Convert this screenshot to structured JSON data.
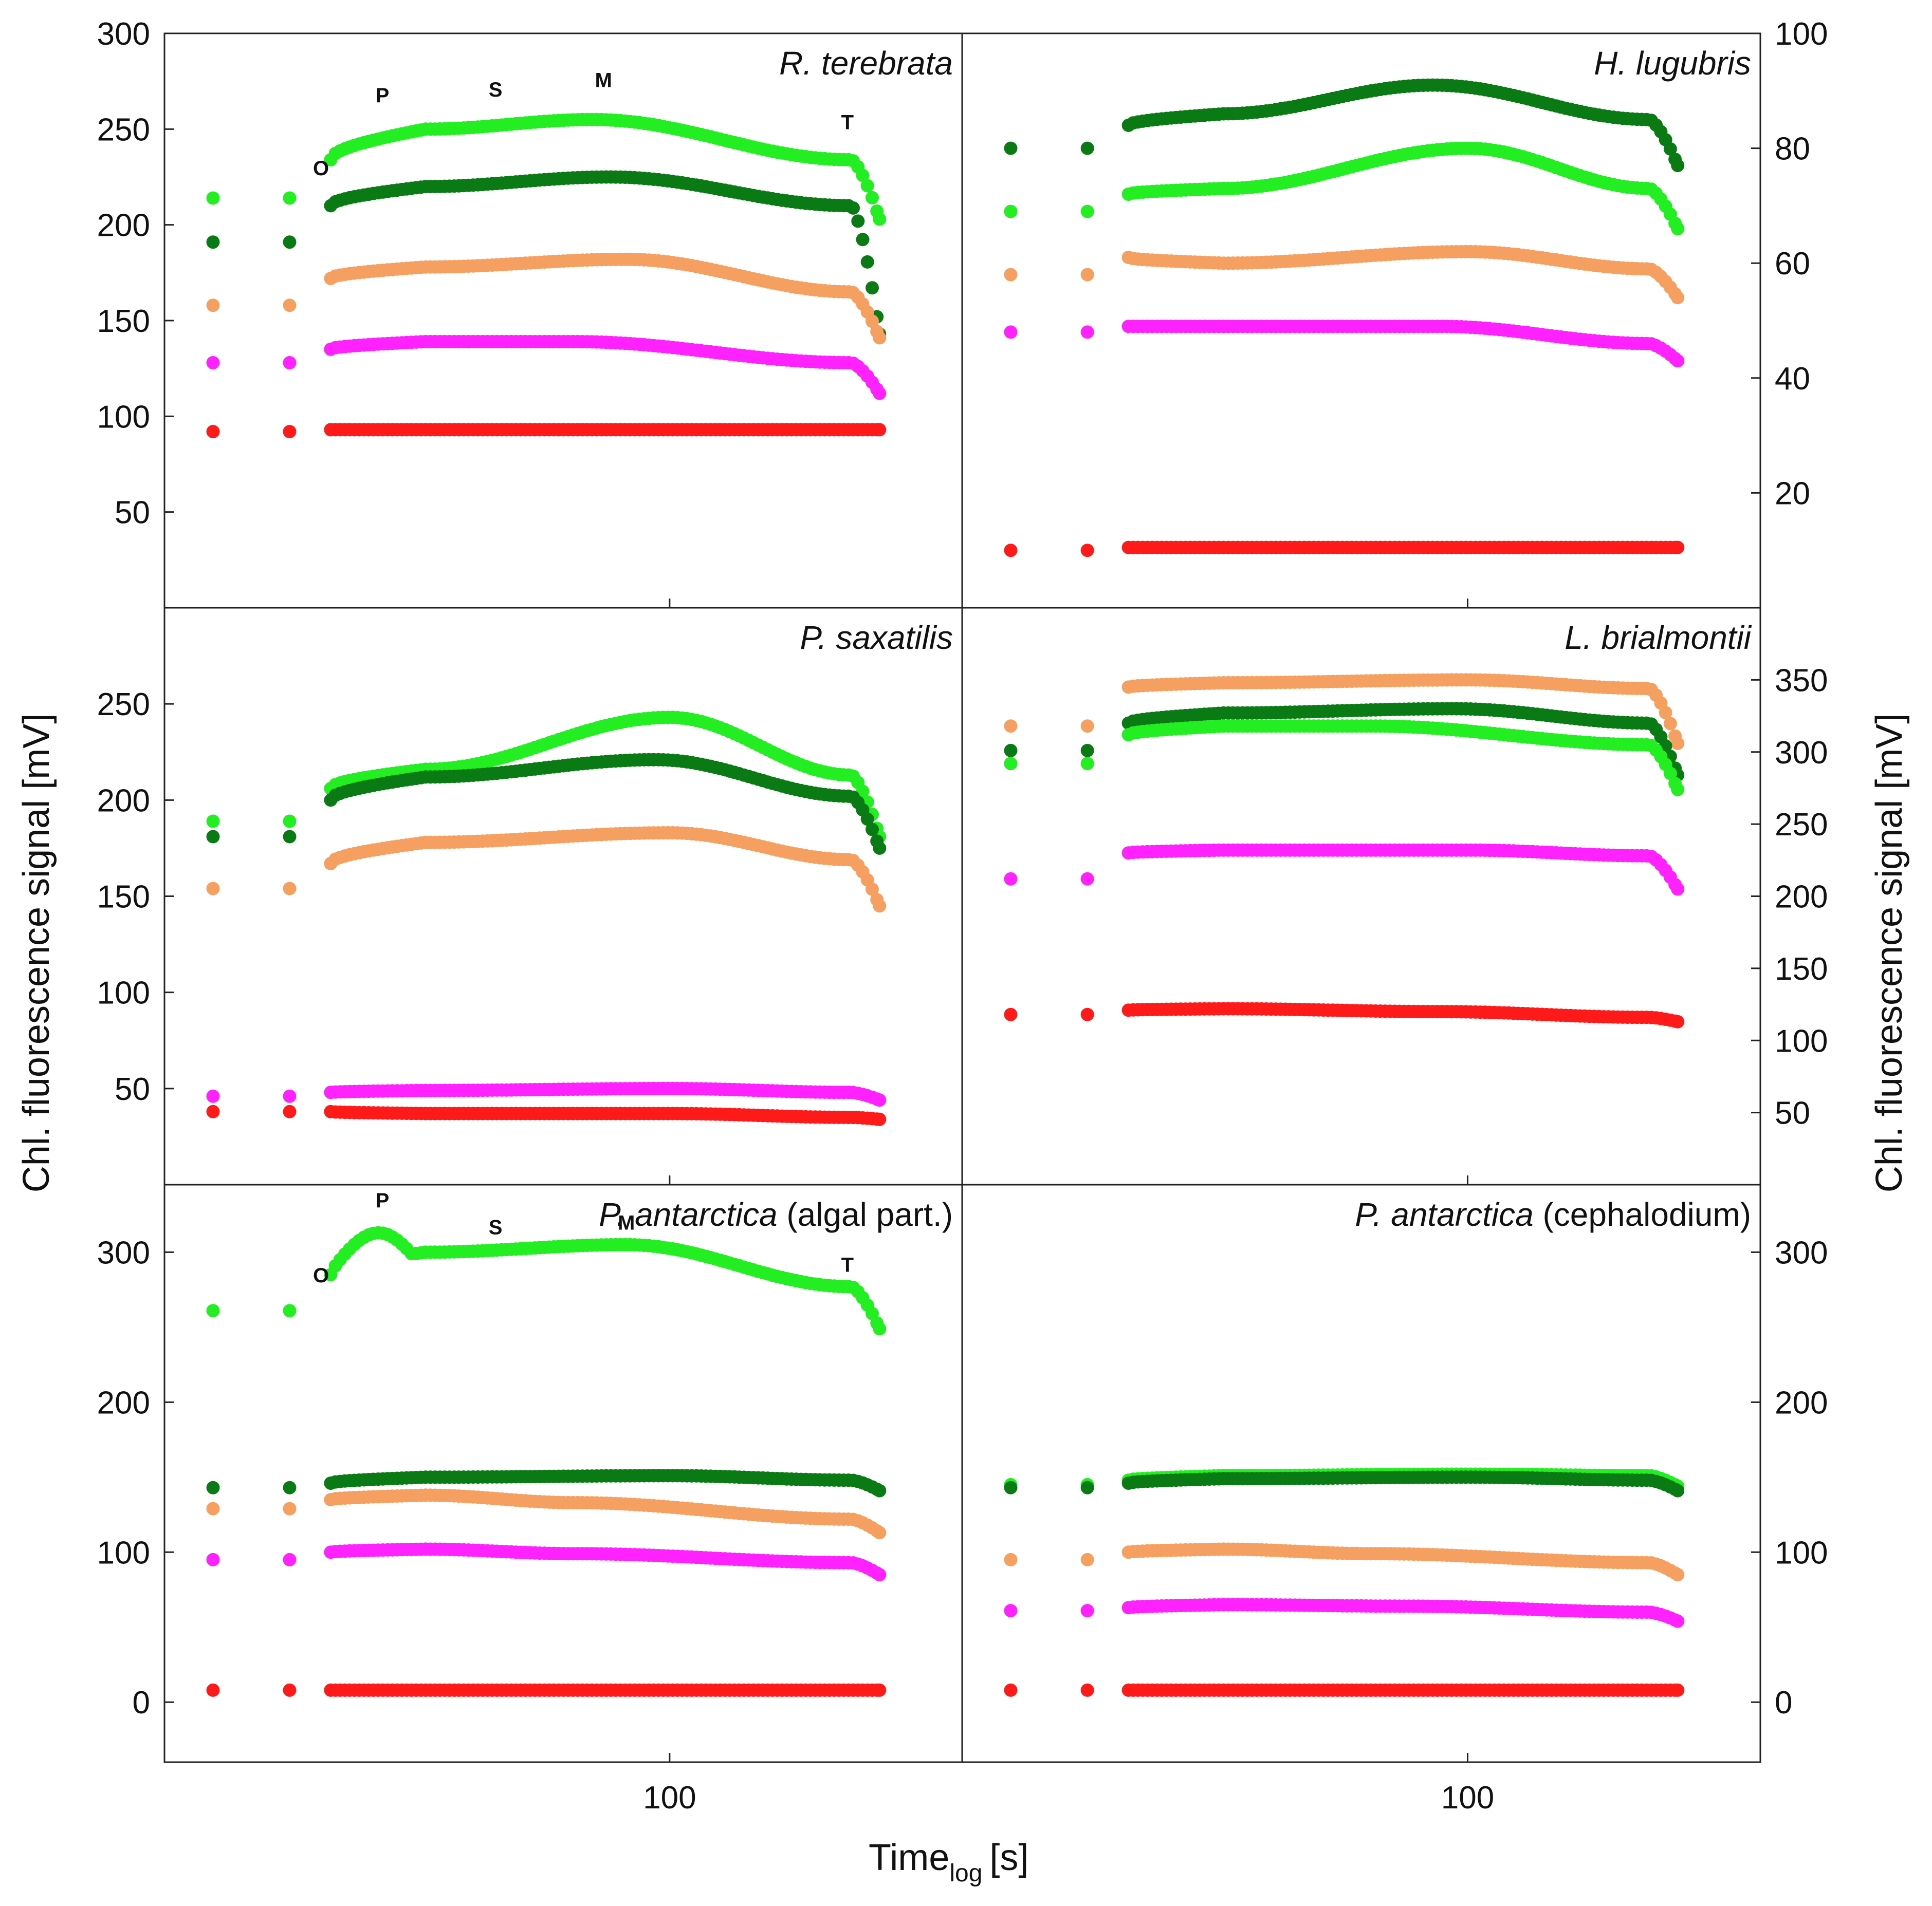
{
  "figure": {
    "x_axis_title_main": "Time",
    "x_axis_title_sub": "log",
    "x_axis_title_unit": "[s]",
    "left_y_title": "Chl. fluorescence signal [mV]",
    "right_y_title": "Chl. fluorescence signal [mV]",
    "x_tick_label": "100",
    "x_tick_value": 100
  },
  "colors": {
    "light_green": "#22ee22",
    "dark_green": "#0a7a14",
    "orange": "#f5a060",
    "magenta": "#ff22ff",
    "red": "#ff1a1a"
  },
  "chart_data": [
    {
      "type": "scatter",
      "panel": "top-left",
      "title_italic": "R. terebrata",
      "title_rest": "",
      "y_ticks": [
        50,
        100,
        150,
        200,
        250,
        300
      ],
      "ylim": [
        0,
        300
      ],
      "markers": [
        {
          "label": "O",
          "x": 27,
          "y": 226
        },
        {
          "label": "P",
          "x": 34,
          "y": 264
        },
        {
          "label": "S",
          "x": 52,
          "y": 267
        },
        {
          "label": "M",
          "x": 78,
          "y": 272
        },
        {
          "label": "T",
          "x": 195,
          "y": 250
        }
      ],
      "series": [
        {
          "name": "light green",
          "color": "light_green",
          "base": 214,
          "plateau": 234,
          "start": 250,
          "mid": 255,
          "end": 234,
          "final": 203,
          "peak_x": 75,
          "bump": 0
        },
        {
          "name": "dark green",
          "color": "dark_green",
          "base": 191,
          "plateau": 210,
          "start": 220,
          "mid": 225,
          "end": 210,
          "final": 143,
          "peak_x": 80,
          "bump": 0
        },
        {
          "name": "orange",
          "color": "orange",
          "base": 158,
          "plateau": 172,
          "start": 178,
          "mid": 182,
          "end": 165,
          "final": 141,
          "peak_x": 85,
          "bump": 0
        },
        {
          "name": "magenta",
          "color": "magenta",
          "base": 128,
          "plateau": 135,
          "start": 139,
          "mid": 139,
          "end": 128,
          "final": 112,
          "peak_x": 70,
          "bump": 0
        },
        {
          "name": "red",
          "color": "red",
          "base": 92,
          "plateau": 93,
          "start": 93,
          "mid": 93,
          "end": 93,
          "final": 93,
          "peak_x": 70,
          "bump": 0
        }
      ]
    },
    {
      "type": "scatter",
      "panel": "top-right",
      "title_italic": "H. lugubris",
      "title_rest": "",
      "y_ticks": [
        20,
        40,
        60,
        80,
        100
      ],
      "ylim": [
        0,
        100
      ],
      "markers": [],
      "series": [
        {
          "name": "dark green",
          "color": "dark_green",
          "base": 80,
          "plateau": 84,
          "start": 86,
          "mid": 91,
          "end": 85,
          "final": 77,
          "peak_x": 88,
          "bump": 0
        },
        {
          "name": "light green",
          "color": "light_green",
          "base": 69,
          "plateau": 72,
          "start": 73,
          "mid": 80,
          "end": 73,
          "final": 66,
          "peak_x": 100,
          "bump": 0
        },
        {
          "name": "orange",
          "color": "orange",
          "base": 58,
          "plateau": 61,
          "start": 60,
          "mid": 62,
          "end": 59,
          "final": 54,
          "peak_x": 100,
          "bump": 0
        },
        {
          "name": "magenta",
          "color": "magenta",
          "base": 48,
          "plateau": 49,
          "start": 49,
          "mid": 49,
          "end": 46,
          "final": 43,
          "peak_x": 90,
          "bump": 0
        },
        {
          "name": "red",
          "color": "red",
          "base": 10,
          "plateau": 10.5,
          "start": 10.5,
          "mid": 10.5,
          "end": 10.5,
          "final": 10.5,
          "peak_x": 90,
          "bump": 0
        }
      ]
    },
    {
      "type": "scatter",
      "panel": "middle-left",
      "title_italic": "P. saxatilis",
      "title_rest": "",
      "y_ticks": [
        50,
        100,
        150,
        200,
        250
      ],
      "ylim": [
        0,
        300
      ],
      "markers": [],
      "series": [
        {
          "name": "light green",
          "color": "light_green",
          "base": 189,
          "plateau": 206,
          "start": 216,
          "mid": 243,
          "end": 213,
          "final": 181,
          "peak_x": 100,
          "bump": 0
        },
        {
          "name": "dark green",
          "color": "dark_green",
          "base": 181,
          "plateau": 200,
          "start": 212,
          "mid": 221,
          "end": 202,
          "final": 175,
          "peak_x": 95,
          "bump": 0
        },
        {
          "name": "orange",
          "color": "orange",
          "base": 154,
          "plateau": 167,
          "start": 178,
          "mid": 183,
          "end": 169,
          "final": 145,
          "peak_x": 100,
          "bump": 0
        },
        {
          "name": "magenta",
          "color": "magenta",
          "base": 46,
          "plateau": 48,
          "start": 49,
          "mid": 50,
          "end": 48,
          "final": 44,
          "peak_x": 100,
          "bump": 0
        },
        {
          "name": "red",
          "color": "red",
          "base": 38,
          "plateau": 38,
          "start": 37,
          "mid": 37,
          "end": 35,
          "final": 34,
          "peak_x": 100,
          "bump": 0
        }
      ]
    },
    {
      "type": "scatter",
      "panel": "middle-right",
      "title_italic": "L. brialmontii",
      "title_rest": "",
      "y_ticks": [
        50,
        100,
        150,
        200,
        250,
        300,
        350
      ],
      "ylim": [
        0,
        400
      ],
      "markers": [],
      "series": [
        {
          "name": "orange",
          "color": "orange",
          "base": 318,
          "plateau": 345,
          "start": 348,
          "mid": 350,
          "end": 344,
          "final": 306,
          "peak_x": 100,
          "bump": 0
        },
        {
          "name": "dark green",
          "color": "dark_green",
          "base": 301,
          "plateau": 320,
          "start": 327,
          "mid": 330,
          "end": 320,
          "final": 284,
          "peak_x": 95,
          "bump": 0
        },
        {
          "name": "light green",
          "color": "light_green",
          "base": 292,
          "plateau": 312,
          "start": 318,
          "mid": 318,
          "end": 305,
          "final": 274,
          "peak_x": 70,
          "bump": 0
        },
        {
          "name": "magenta",
          "color": "magenta",
          "base": 212,
          "plateau": 230,
          "start": 232,
          "mid": 232,
          "end": 228,
          "final": 205,
          "peak_x": 100,
          "bump": 0
        },
        {
          "name": "red",
          "color": "red",
          "base": 118,
          "plateau": 121,
          "start": 122,
          "mid": 120,
          "end": 116,
          "final": 113,
          "peak_x": 90,
          "bump": 0
        }
      ]
    },
    {
      "type": "scatter",
      "panel": "bottom-left",
      "title_italic": "P. antarctica",
      "title_rest": " (algal part.)",
      "y_ticks": [
        0,
        100,
        200,
        300
      ],
      "ylim": [
        -40,
        345
      ],
      "markers": [
        {
          "label": "O",
          "x": 27,
          "y": 280
        },
        {
          "label": "P",
          "x": 34,
          "y": 330
        },
        {
          "label": "S",
          "x": 52,
          "y": 312
        },
        {
          "label": "M",
          "x": 85,
          "y": 315
        },
        {
          "label": "T",
          "x": 195,
          "y": 287
        }
      ],
      "series": [
        {
          "name": "light green",
          "color": "light_green",
          "base": 261,
          "plateau": 285,
          "start": 300,
          "mid": 305,
          "end": 277,
          "final": 249,
          "peak_x": 85,
          "bump": 18
        },
        {
          "name": "dark green",
          "color": "dark_green",
          "base": 143,
          "plateau": 146,
          "start": 150,
          "mid": 151,
          "end": 148,
          "final": 141,
          "peak_x": 100,
          "bump": 0
        },
        {
          "name": "orange",
          "color": "orange",
          "base": 129,
          "plateau": 135,
          "start": 138,
          "mid": 133,
          "end": 122,
          "final": 113,
          "peak_x": 70,
          "bump": 0
        },
        {
          "name": "magenta",
          "color": "magenta",
          "base": 95,
          "plateau": 100,
          "start": 102,
          "mid": 99,
          "end": 93,
          "final": 85,
          "peak_x": 70,
          "bump": 0
        },
        {
          "name": "red",
          "color": "red",
          "base": 8,
          "plateau": 8,
          "start": 8,
          "mid": 8,
          "end": 8,
          "final": 8,
          "peak_x": 90,
          "bump": 0
        }
      ]
    },
    {
      "type": "scatter",
      "panel": "bottom-right",
      "title_italic": "P. antarctica",
      "title_rest": " (cephalodium)",
      "y_ticks": [
        0,
        100,
        200,
        300
      ],
      "ylim": [
        -40,
        345
      ],
      "markers": [],
      "series": [
        {
          "name": "light green",
          "color": "light_green",
          "base": 145,
          "plateau": 148,
          "start": 151,
          "mid": 152,
          "end": 151,
          "final": 144,
          "peak_x": 100,
          "bump": 0
        },
        {
          "name": "dark green",
          "color": "dark_green",
          "base": 143,
          "plateau": 146,
          "start": 149,
          "mid": 150,
          "end": 148,
          "final": 141,
          "peak_x": 100,
          "bump": 0
        },
        {
          "name": "orange",
          "color": "orange",
          "base": 95,
          "plateau": 100,
          "start": 102,
          "mid": 99,
          "end": 93,
          "final": 85,
          "peak_x": 70,
          "bump": 0
        },
        {
          "name": "magenta",
          "color": "magenta",
          "base": 61,
          "plateau": 63,
          "start": 65,
          "mid": 64,
          "end": 60,
          "final": 54,
          "peak_x": 80,
          "bump": 0
        },
        {
          "name": "red",
          "color": "red",
          "base": 8,
          "plateau": 8,
          "start": 8,
          "mid": 8,
          "end": 8,
          "final": 8,
          "peak_x": 90,
          "bump": 0
        }
      ]
    }
  ]
}
